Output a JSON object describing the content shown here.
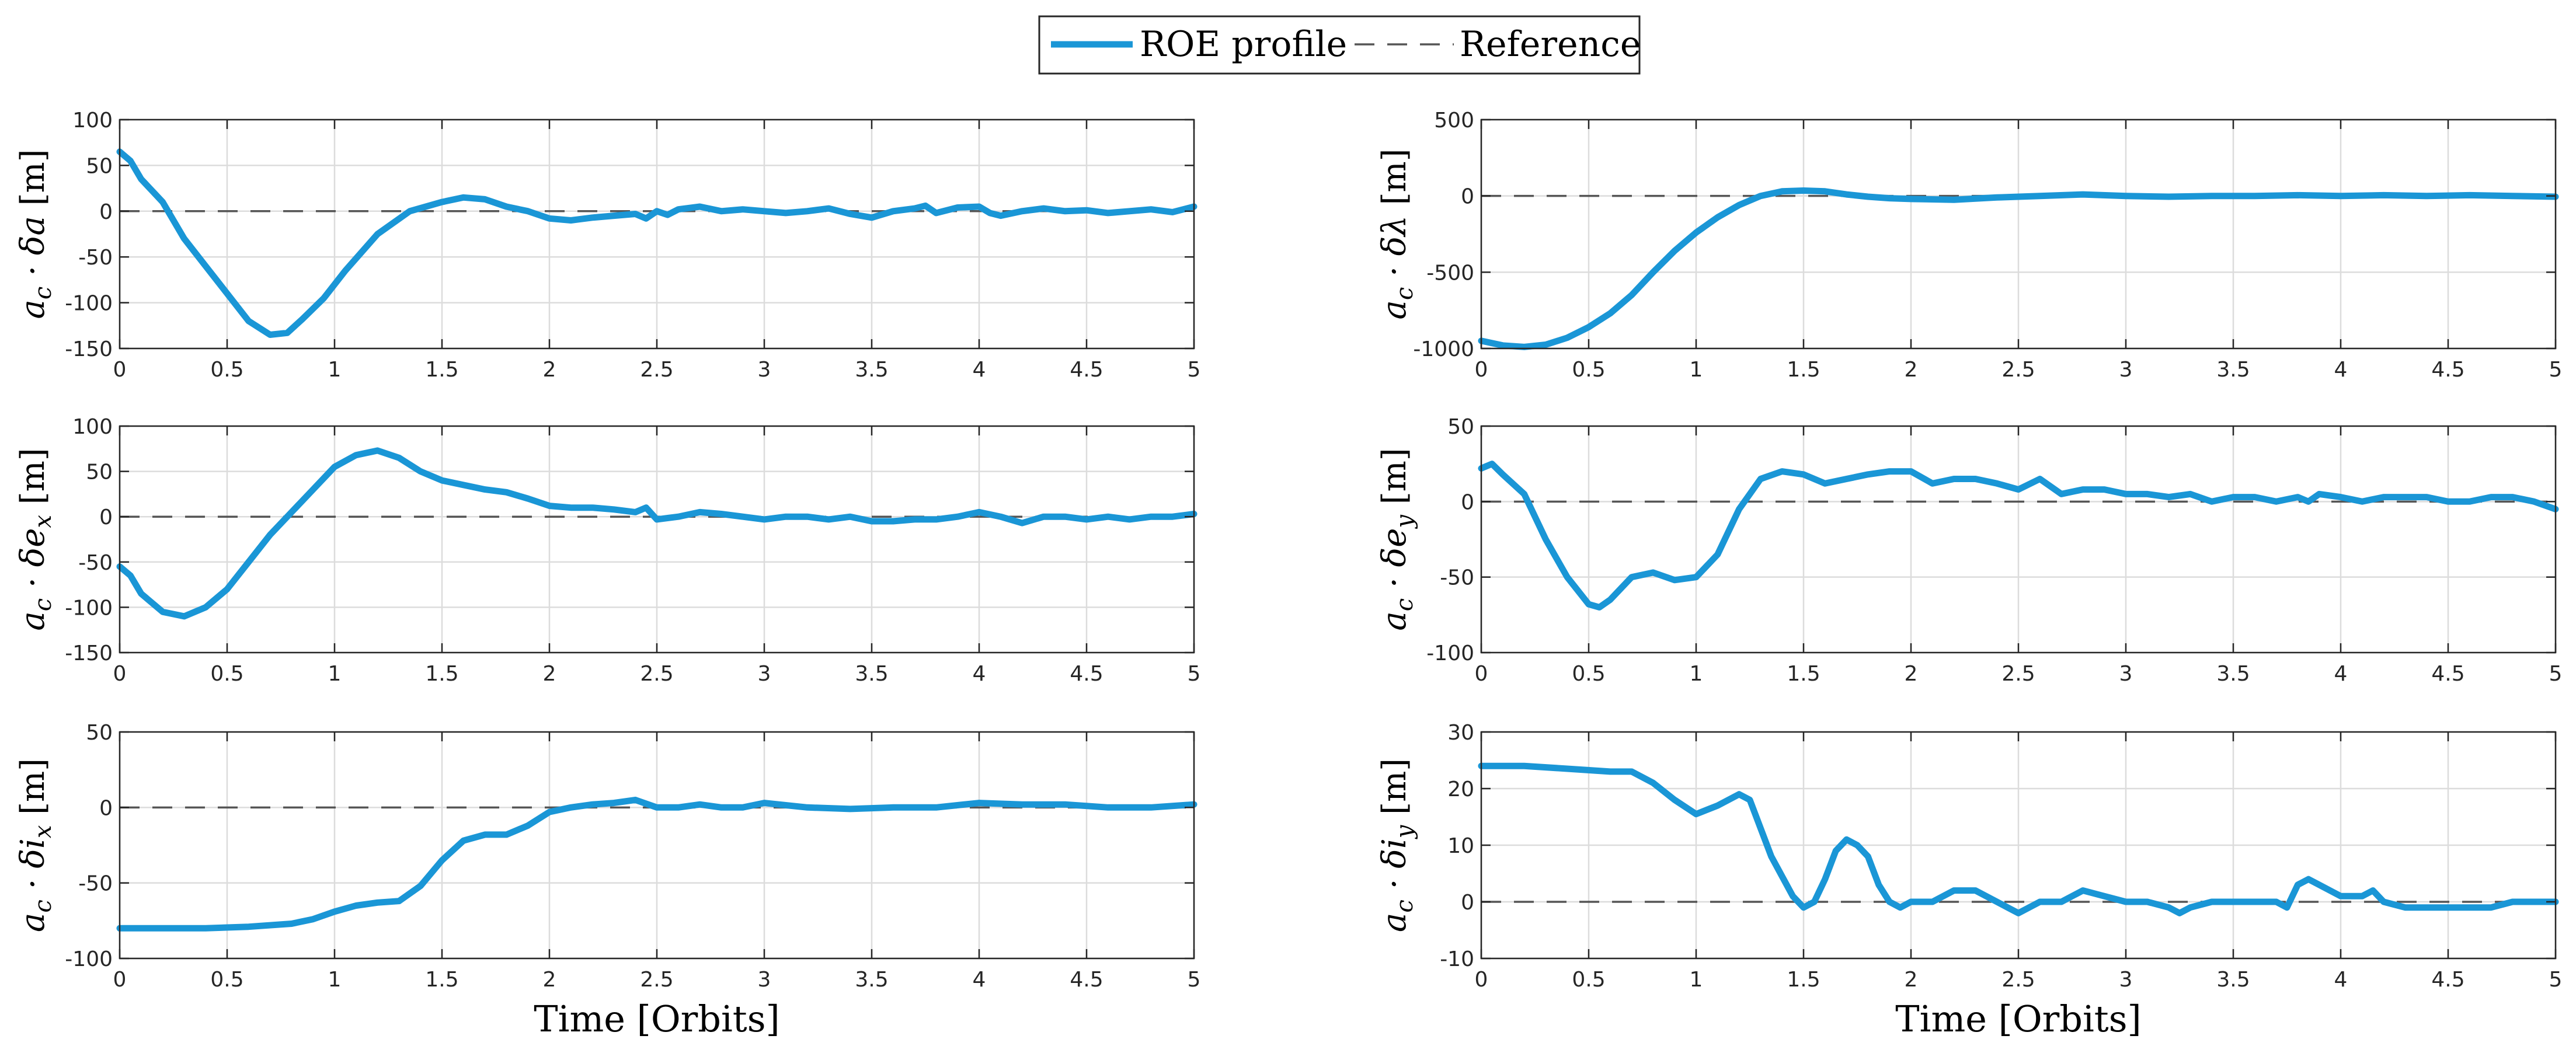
{
  "legend": {
    "series_label": "ROE profile",
    "reference_label": "Reference",
    "series_color": "#1a96d6",
    "reference_color": "#555555"
  },
  "chart_data": [
    {
      "type": "line",
      "id": "delta-a",
      "ylabel": "a_c · δa [m]",
      "ylabel_main": "a",
      "ylabel_sub": "c",
      "ylabel_mid": " · δ",
      "ylabel_var": "a",
      "ylabel_var_sub": "",
      "ylabel_unit": "[m]",
      "xlabel": "",
      "xlim": [
        0,
        5
      ],
      "ylim": [
        -150,
        100
      ],
      "xticks": [
        0,
        0.5,
        1,
        1.5,
        2,
        2.5,
        3,
        3.5,
        4,
        4.5,
        5
      ],
      "yticks": [
        -150,
        -100,
        -50,
        0,
        50,
        100
      ],
      "reference": 0,
      "x": [
        0,
        0.05,
        0.1,
        0.2,
        0.3,
        0.4,
        0.5,
        0.6,
        0.7,
        0.78,
        0.85,
        0.95,
        1.05,
        1.2,
        1.35,
        1.5,
        1.6,
        1.7,
        1.8,
        1.9,
        2.0,
        2.1,
        2.2,
        2.3,
        2.4,
        2.45,
        2.5,
        2.55,
        2.6,
        2.7,
        2.8,
        2.9,
        3.0,
        3.1,
        3.2,
        3.3,
        3.4,
        3.5,
        3.6,
        3.7,
        3.75,
        3.8,
        3.9,
        4.0,
        4.05,
        4.1,
        4.2,
        4.3,
        4.4,
        4.5,
        4.6,
        4.7,
        4.8,
        4.9,
        5.0
      ],
      "y": [
        65,
        55,
        35,
        10,
        -30,
        -60,
        -90,
        -120,
        -135,
        -133,
        -118,
        -95,
        -65,
        -25,
        0,
        10,
        15,
        13,
        5,
        0,
        -8,
        -10,
        -7,
        -5,
        -3,
        -8,
        0,
        -4,
        2,
        5,
        0,
        2,
        0,
        -2,
        0,
        3,
        -3,
        -7,
        0,
        3,
        6,
        -2,
        4,
        5,
        -2,
        -5,
        0,
        3,
        0,
        1,
        -2,
        0,
        2,
        -1,
        5
      ]
    },
    {
      "type": "line",
      "id": "delta-lambda",
      "ylabel": "a_c · δλ [m]",
      "ylabel_main": "a",
      "ylabel_sub": "c",
      "ylabel_mid": " · δ",
      "ylabel_var": "λ",
      "ylabel_var_sub": "",
      "ylabel_unit": "[m]",
      "xlabel": "",
      "xlim": [
        0,
        5
      ],
      "ylim": [
        -1000,
        500
      ],
      "xticks": [
        0,
        0.5,
        1,
        1.5,
        2,
        2.5,
        3,
        3.5,
        4,
        4.5,
        5
      ],
      "yticks": [
        -1000,
        -500,
        0,
        500
      ],
      "reference": 0,
      "x": [
        0,
        0.1,
        0.2,
        0.3,
        0.4,
        0.5,
        0.6,
        0.7,
        0.8,
        0.9,
        1.0,
        1.1,
        1.2,
        1.3,
        1.4,
        1.5,
        1.6,
        1.7,
        1.8,
        1.9,
        2.0,
        2.2,
        2.4,
        2.6,
        2.8,
        3.0,
        3.2,
        3.4,
        3.6,
        3.8,
        4.0,
        4.2,
        4.4,
        4.6,
        4.8,
        5.0
      ],
      "y": [
        -950,
        -980,
        -990,
        -975,
        -930,
        -860,
        -770,
        -650,
        -500,
        -360,
        -240,
        -140,
        -60,
        0,
        30,
        35,
        30,
        10,
        -5,
        -15,
        -20,
        -25,
        -10,
        0,
        10,
        0,
        -5,
        0,
        0,
        5,
        0,
        5,
        0,
        5,
        0,
        -5
      ]
    },
    {
      "type": "line",
      "id": "delta-ex",
      "ylabel": "a_c · δe_x [m]",
      "ylabel_main": "a",
      "ylabel_sub": "c",
      "ylabel_mid": " · δ",
      "ylabel_var": "e",
      "ylabel_var_sub": "x",
      "ylabel_unit": "[m]",
      "xlabel": "",
      "xlim": [
        0,
        5
      ],
      "ylim": [
        -150,
        100
      ],
      "xticks": [
        0,
        0.5,
        1,
        1.5,
        2,
        2.5,
        3,
        3.5,
        4,
        4.5,
        5
      ],
      "yticks": [
        -150,
        -100,
        -50,
        0,
        50,
        100
      ],
      "reference": 0,
      "x": [
        0,
        0.05,
        0.1,
        0.2,
        0.3,
        0.4,
        0.5,
        0.6,
        0.7,
        0.8,
        0.9,
        1.0,
        1.1,
        1.2,
        1.3,
        1.4,
        1.5,
        1.6,
        1.7,
        1.8,
        1.9,
        2.0,
        2.1,
        2.2,
        2.3,
        2.4,
        2.45,
        2.5,
        2.6,
        2.7,
        2.8,
        2.9,
        3.0,
        3.1,
        3.2,
        3.3,
        3.4,
        3.5,
        3.6,
        3.7,
        3.8,
        3.9,
        4.0,
        4.1,
        4.2,
        4.3,
        4.4,
        4.5,
        4.6,
        4.7,
        4.8,
        4.9,
        5.0
      ],
      "y": [
        -55,
        -65,
        -85,
        -105,
        -110,
        -100,
        -80,
        -50,
        -20,
        5,
        30,
        55,
        68,
        73,
        65,
        50,
        40,
        35,
        30,
        27,
        20,
        12,
        10,
        10,
        8,
        5,
        10,
        -3,
        0,
        5,
        3,
        0,
        -3,
        0,
        0,
        -3,
        0,
        -5,
        -5,
        -3,
        -3,
        0,
        5,
        0,
        -7,
        0,
        0,
        -3,
        0,
        -3,
        0,
        0,
        3
      ]
    },
    {
      "type": "line",
      "id": "delta-ey",
      "ylabel": "a_c · δe_y [m]",
      "ylabel_main": "a",
      "ylabel_sub": "c",
      "ylabel_mid": " · δ",
      "ylabel_var": "e",
      "ylabel_var_sub": "y",
      "ylabel_unit": "[m]",
      "xlabel": "",
      "xlim": [
        0,
        5
      ],
      "ylim": [
        -100,
        50
      ],
      "xticks": [
        0,
        0.5,
        1,
        1.5,
        2,
        2.5,
        3,
        3.5,
        4,
        4.5,
        5
      ],
      "yticks": [
        -100,
        -50,
        0,
        50
      ],
      "reference": 0,
      "x": [
        0,
        0.05,
        0.1,
        0.2,
        0.3,
        0.4,
        0.5,
        0.55,
        0.6,
        0.7,
        0.8,
        0.9,
        1.0,
        1.1,
        1.2,
        1.3,
        1.4,
        1.5,
        1.6,
        1.7,
        1.8,
        1.9,
        2.0,
        2.1,
        2.2,
        2.3,
        2.4,
        2.5,
        2.6,
        2.7,
        2.8,
        2.9,
        3.0,
        3.1,
        3.2,
        3.3,
        3.4,
        3.5,
        3.6,
        3.7,
        3.8,
        3.85,
        3.9,
        4.0,
        4.1,
        4.2,
        4.3,
        4.4,
        4.5,
        4.6,
        4.7,
        4.8,
        4.9,
        5.0
      ],
      "y": [
        22,
        25,
        18,
        5,
        -25,
        -50,
        -68,
        -70,
        -65,
        -50,
        -47,
        -52,
        -50,
        -35,
        -5,
        15,
        20,
        18,
        12,
        15,
        18,
        20,
        20,
        12,
        15,
        15,
        12,
        8,
        15,
        5,
        8,
        8,
        5,
        5,
        3,
        5,
        0,
        3,
        3,
        0,
        3,
        0,
        5,
        3,
        0,
        3,
        3,
        3,
        0,
        0,
        3,
        3,
        0,
        -5
      ]
    },
    {
      "type": "line",
      "id": "delta-ix",
      "ylabel": "a_c · δi_x [m]",
      "ylabel_main": "a",
      "ylabel_sub": "c",
      "ylabel_mid": " · δ",
      "ylabel_var": "i",
      "ylabel_var_sub": "x",
      "ylabel_unit": "[m]",
      "xlabel": "Time [Orbits]",
      "xlim": [
        0,
        5
      ],
      "ylim": [
        -100,
        50
      ],
      "xticks": [
        0,
        0.5,
        1,
        1.5,
        2,
        2.5,
        3,
        3.5,
        4,
        4.5,
        5
      ],
      "yticks": [
        -100,
        -50,
        0,
        50
      ],
      "reference": 0,
      "x": [
        0,
        0.2,
        0.4,
        0.6,
        0.8,
        0.9,
        1.0,
        1.1,
        1.2,
        1.3,
        1.4,
        1.5,
        1.6,
        1.7,
        1.8,
        1.9,
        2.0,
        2.1,
        2.2,
        2.3,
        2.4,
        2.5,
        2.6,
        2.7,
        2.8,
        2.9,
        3.0,
        3.2,
        3.4,
        3.6,
        3.8,
        4.0,
        4.2,
        4.4,
        4.6,
        4.8,
        5.0
      ],
      "y": [
        -80,
        -80,
        -80,
        -79,
        -77,
        -74,
        -69,
        -65,
        -63,
        -62,
        -52,
        -35,
        -22,
        -18,
        -18,
        -12,
        -3,
        0,
        2,
        3,
        5,
        0,
        0,
        2,
        0,
        0,
        3,
        0,
        -1,
        0,
        0,
        3,
        2,
        2,
        0,
        0,
        2
      ]
    },
    {
      "type": "line",
      "id": "delta-iy",
      "ylabel": "a_c · δi_y [m]",
      "ylabel_main": "a",
      "ylabel_sub": "c",
      "ylabel_mid": " · δ",
      "ylabel_var": "i",
      "ylabel_var_sub": "y",
      "ylabel_unit": "[m]",
      "xlabel": "Time [Orbits]",
      "xlim": [
        0,
        5
      ],
      "ylim": [
        -10,
        30
      ],
      "xticks": [
        0,
        0.5,
        1,
        1.5,
        2,
        2.5,
        3,
        3.5,
        4,
        4.5,
        5
      ],
      "yticks": [
        -10,
        0,
        10,
        20,
        30
      ],
      "reference": 0,
      "x": [
        0,
        0.2,
        0.4,
        0.6,
        0.7,
        0.8,
        0.9,
        1.0,
        1.1,
        1.2,
        1.25,
        1.35,
        1.45,
        1.5,
        1.55,
        1.6,
        1.65,
        1.7,
        1.75,
        1.8,
        1.85,
        1.9,
        1.95,
        2.0,
        2.1,
        2.2,
        2.3,
        2.4,
        2.45,
        2.5,
        2.6,
        2.7,
        2.8,
        2.9,
        3.0,
        3.1,
        3.2,
        3.25,
        3.3,
        3.4,
        3.5,
        3.6,
        3.7,
        3.75,
        3.8,
        3.85,
        3.9,
        4.0,
        4.1,
        4.15,
        4.2,
        4.3,
        4.4,
        4.5,
        4.6,
        4.7,
        4.8,
        4.9,
        5.0
      ],
      "y": [
        24,
        24,
        23.5,
        23,
        23,
        21,
        18,
        15.5,
        17,
        19,
        18,
        8,
        1,
        -1,
        0,
        4,
        9,
        11,
        10,
        8,
        3,
        0,
        -1,
        0,
        0,
        2,
        2,
        0,
        -1,
        -2,
        0,
        0,
        2,
        1,
        0,
        0,
        -1,
        -2,
        -1,
        0,
        0,
        0,
        0,
        -1,
        3,
        4,
        3,
        1,
        1,
        2,
        0,
        -1,
        -1,
        -1,
        -1,
        -1,
        0,
        0,
        0
      ]
    }
  ]
}
